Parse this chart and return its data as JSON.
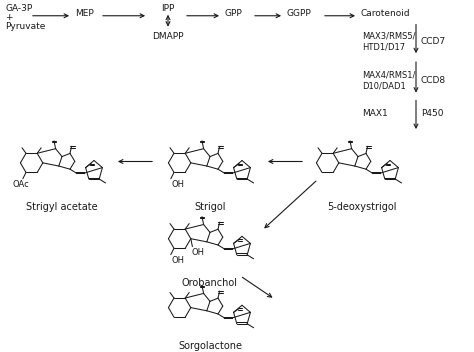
{
  "bg_color": "#ffffff",
  "text_color": "#1a1a1a",
  "fs_small": 6.5,
  "fs_label": 7.0,
  "pathway_labels": {
    "GA3P": "GA-3P",
    "plus": "+",
    "pyruvate": "Pyruvate",
    "MEP": "MEP",
    "IPP": "IPP",
    "DMAPP": "DMAPP",
    "GPP": "GPP",
    "GGPP": "GGPP",
    "Carotenoid": "Carotenoid",
    "MAX3": "MAX3/RMS5/\nHTD1/D17",
    "CCD7": "CCD7",
    "MAX4": "MAX4/RMS1/\nD10/DAD1",
    "CCD8": "CCD8",
    "MAX1": "MAX1",
    "P450": "P450",
    "Strigol": "Strigol",
    "Strigyl_acetate": "Strigyl acetate",
    "Orobanchol": "Orobanchol",
    "Deoxystrigol": "5-deoxystrigol",
    "Sorgolactone": "Sorgolactone"
  }
}
